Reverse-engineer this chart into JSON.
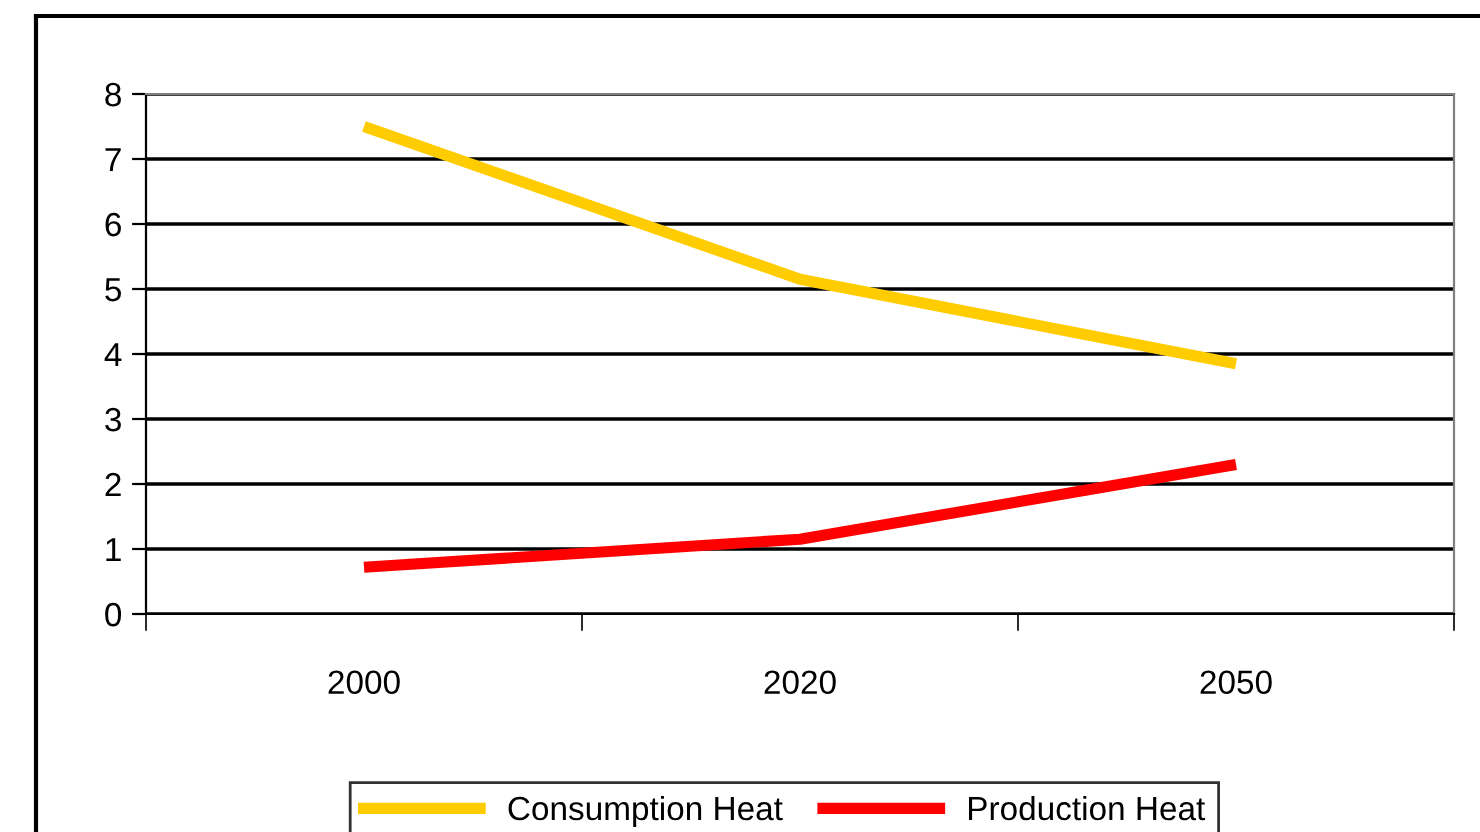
{
  "chart_data": {
    "type": "line",
    "categories": [
      "2000",
      "2020",
      "2050"
    ],
    "series": [
      {
        "name": "Consumption Heat",
        "color": "#ffcc00",
        "values": [
          7.5,
          5.15,
          3.85
        ]
      },
      {
        "name": "Production Heat",
        "color": "#ff0000",
        "values": [
          0.72,
          1.15,
          2.3
        ]
      }
    ],
    "ylim": [
      0,
      8
    ],
    "yticks": [
      0,
      1,
      2,
      3,
      4,
      5,
      6,
      7,
      8
    ],
    "grid": "y",
    "legend": "bottom",
    "marker": "none",
    "line_style": "solid"
  }
}
